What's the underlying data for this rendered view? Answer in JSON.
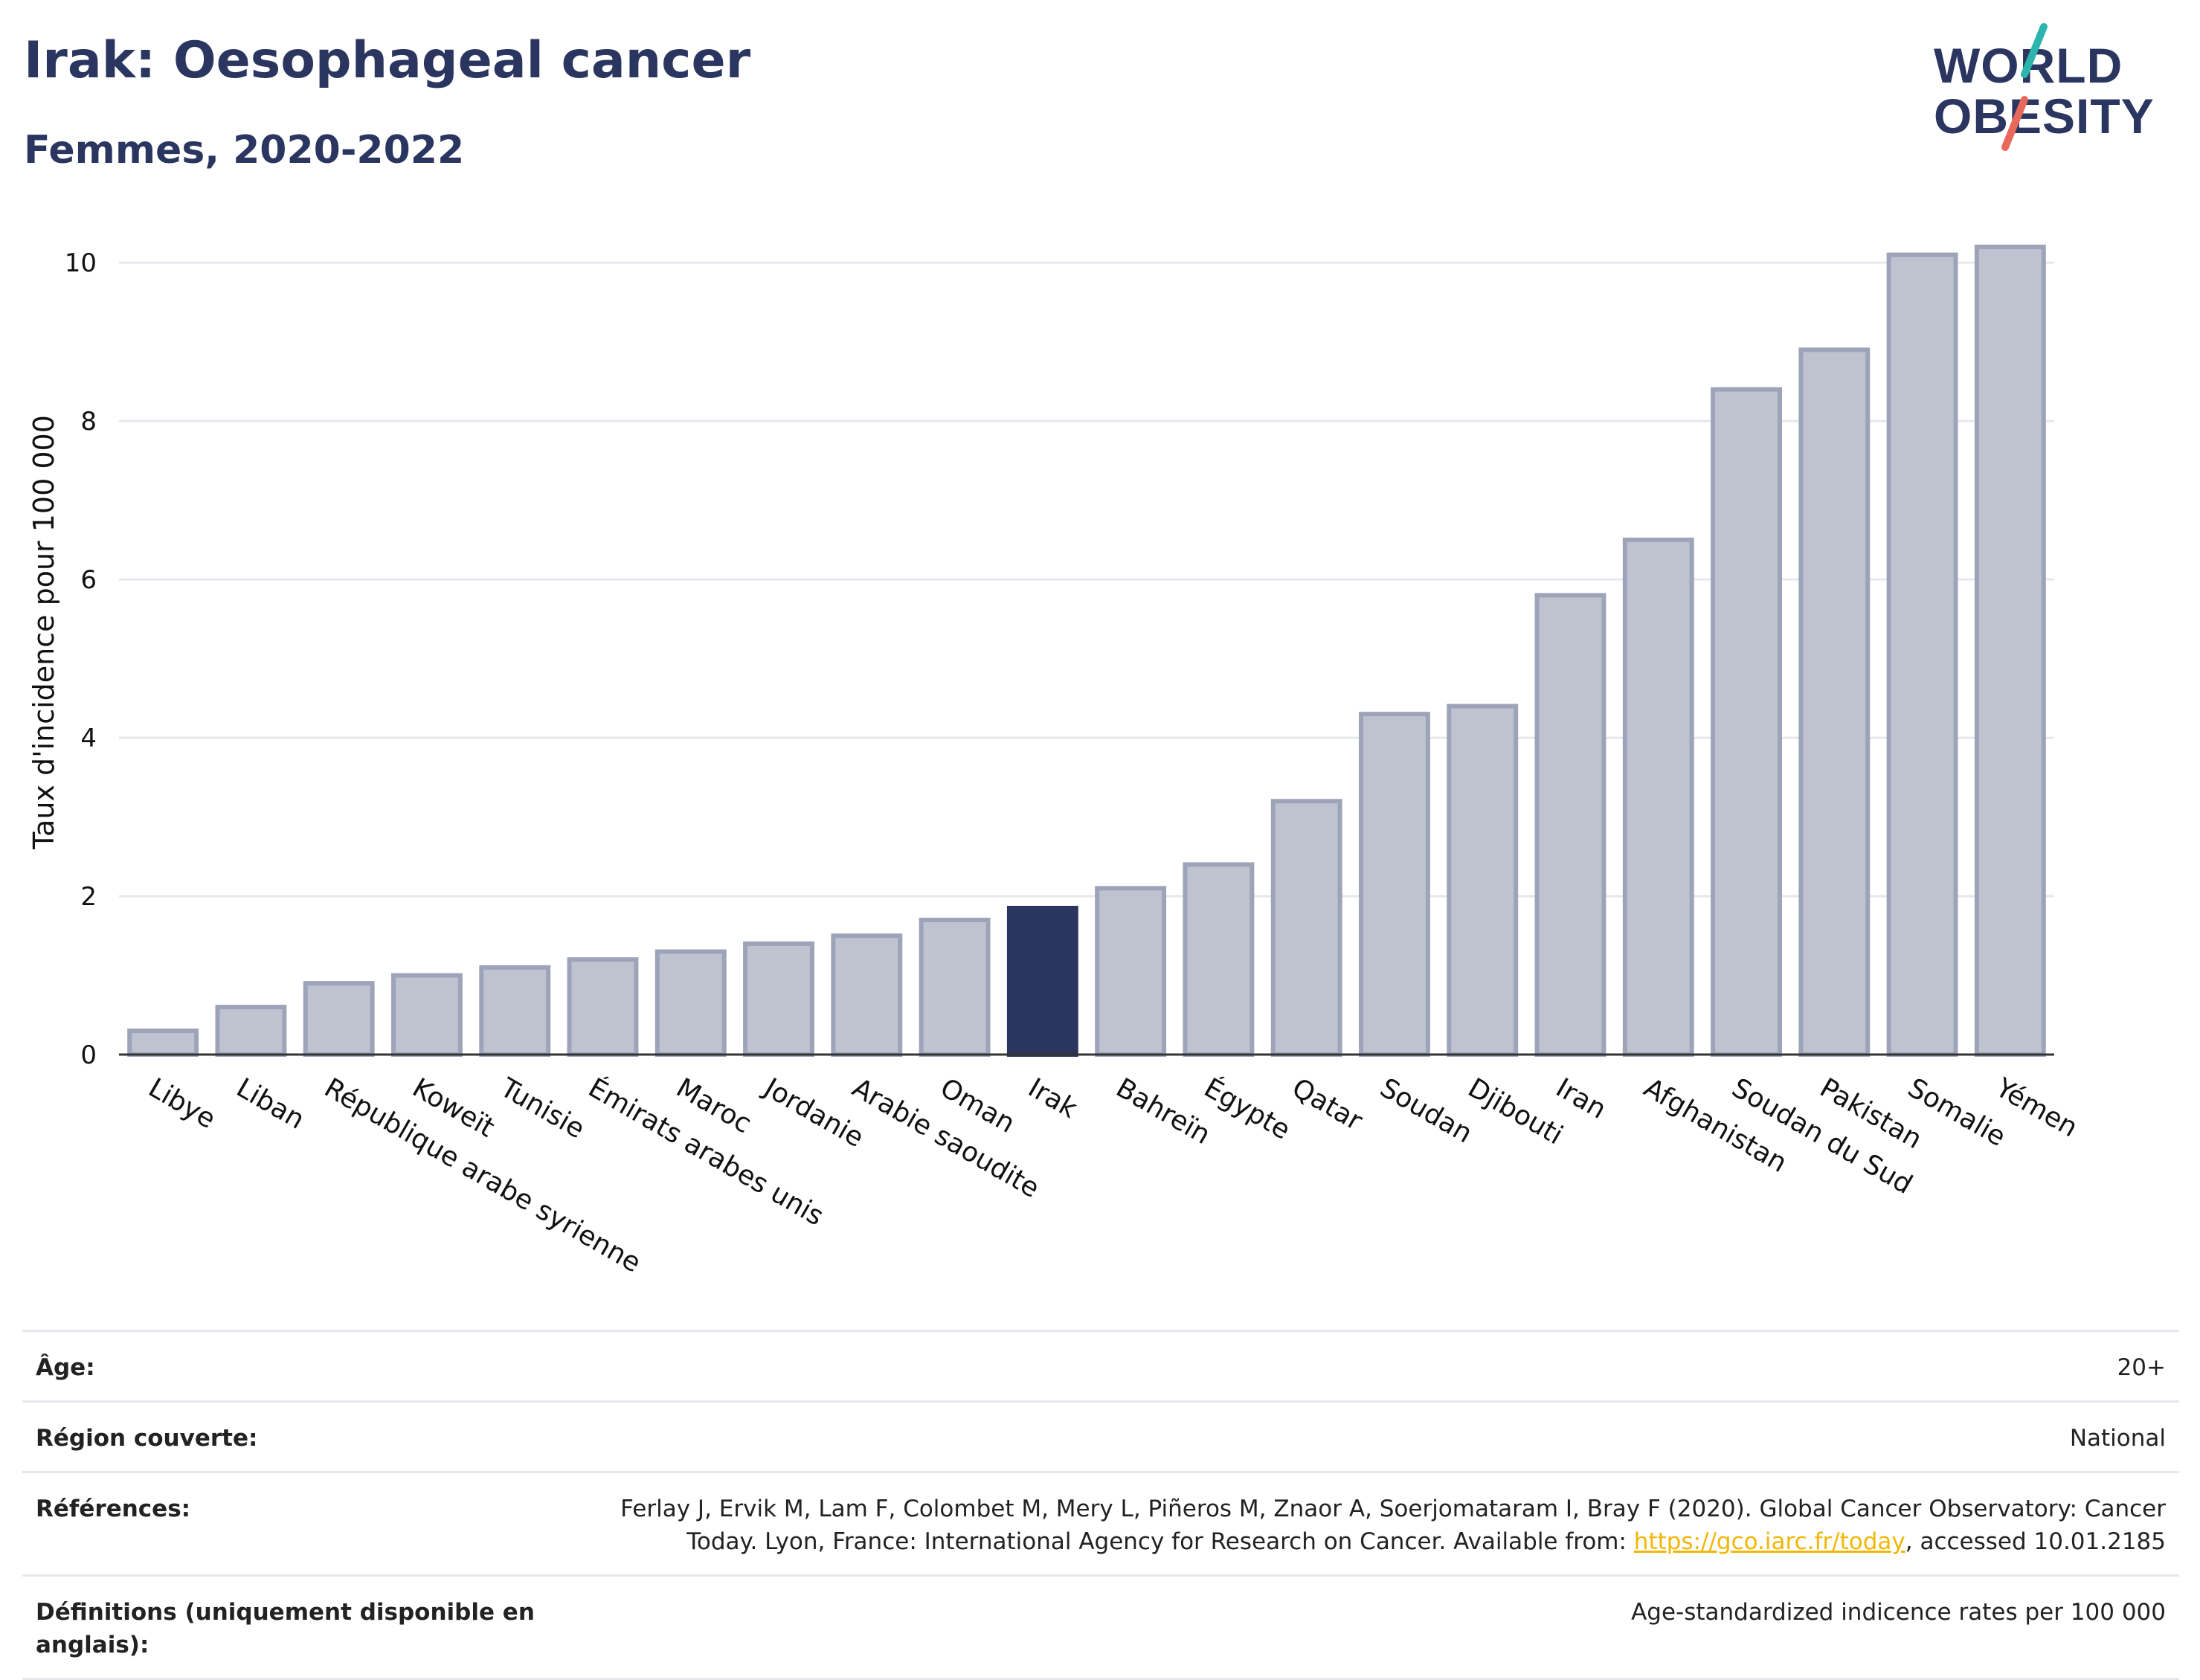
{
  "header": {
    "title": "Irak: Oesophageal cancer",
    "subtitle": "Femmes, 2020-2022"
  },
  "logo": {
    "line1": "WORLD",
    "line2": "OBESITY",
    "accent_teal": "#2bb5ad",
    "accent_red": "#e8695c"
  },
  "colors": {
    "bar_default": "#bfc3d0",
    "bar_default_border": "#9da3b9",
    "bar_highlight": "#2a3560",
    "title": "#2a3560",
    "grid": "#e6e8ee"
  },
  "chart_data": {
    "type": "bar",
    "title": "",
    "xlabel": "",
    "ylabel": "Taux d'incidence pour 100 000",
    "ylim": [
      0,
      10.5
    ],
    "yticks": [
      0,
      2,
      4,
      6,
      8,
      10
    ],
    "grid": true,
    "highlight": "Irak",
    "categories": [
      "Libye",
      "Liban",
      "République arabe syrienne",
      "Koweït",
      "Tunisie",
      "Émirats arabes unis",
      "Maroc",
      "Jordanie",
      "Arabie saoudite",
      "Oman",
      "Irak",
      "Bahreïn",
      "Égypte",
      "Qatar",
      "Soudan",
      "Djibouti",
      "Iran",
      "Afghanistan",
      "Soudan du Sud",
      "Pakistan",
      "Somalie",
      "Yémen"
    ],
    "values": [
      0.3,
      0.6,
      0.9,
      1.0,
      1.1,
      1.2,
      1.3,
      1.4,
      1.5,
      1.7,
      1.85,
      2.1,
      2.4,
      3.2,
      4.3,
      4.4,
      5.8,
      6.5,
      8.4,
      8.9,
      10.1,
      10.2
    ]
  },
  "meta": {
    "age_label": "Âge:",
    "age_value": "20+",
    "region_label": "Région couverte:",
    "region_value": "National",
    "references_label": "Références:",
    "references_text_1": "Ferlay J, Ervik M, Lam F, Colombet M, Mery L, Piñeros M, Znaor A, Soerjomataram I, Bray F (2020). Global Cancer Observatory: Cancer Today. Lyon, France: International Agency for Research on Cancer. Available from: ",
    "references_link": "https://gco.iarc.fr/today",
    "references_text_2": ", accessed 10.01.2185",
    "definitions_label": "Définitions (uniquement disponible en anglais):",
    "definitions_value": "Age-standardized indicence rates per 100 000"
  }
}
